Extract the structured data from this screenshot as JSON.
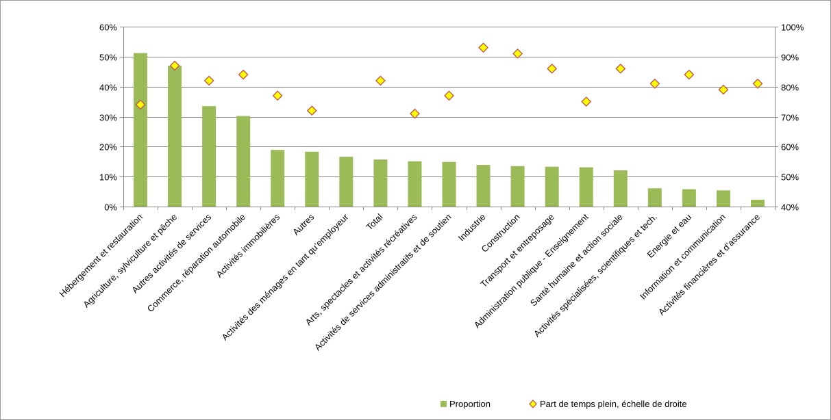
{
  "chart_data": {
    "type": "bar",
    "categories": [
      "Hébergement et restauration",
      "Agriculture, sylviculture et pêche",
      "Autres activités de services",
      "Commerce, réparation automobile",
      "Activités immobilières",
      "Autres",
      "Activités des ménages en tant qu’employeur",
      "Total",
      "Arts, spectacles et activités récréatives",
      "Activités de services administratifs et de soutien",
      "Industrie",
      "Construction",
      "Transport et entreposage",
      "Administration publique - Enseignement",
      "Santé humaine et action sociale",
      "Activités spécialisées, scientifiques et tech.",
      "Energie et eau",
      "Information et communication",
      "Activités financières et d’assurance"
    ],
    "series": [
      {
        "name": "Proportion",
        "axis": "left",
        "type": "bar",
        "color": "#9bbb59",
        "values": [
          51.2,
          47.0,
          33.5,
          30.2,
          18.9,
          18.3,
          16.6,
          15.7,
          15.1,
          14.9,
          13.9,
          13.5,
          13.3,
          13.1,
          12.1,
          6.1,
          5.8,
          5.4,
          2.3
        ]
      },
      {
        "name": "Part de temps plein, échelle de droite",
        "axis": "right",
        "type": "scatter",
        "color": "#ffff00",
        "edge_color": "#c0504d",
        "values": [
          74,
          87,
          82,
          84,
          77,
          72,
          null,
          82,
          71,
          77,
          93,
          91,
          86,
          75,
          86,
          81,
          84,
          79,
          81
        ]
      }
    ],
    "y_left": {
      "min": 0,
      "max": 60,
      "step": 10,
      "ticks": [
        "0%",
        "10%",
        "20%",
        "30%",
        "40%",
        "50%",
        "60%"
      ]
    },
    "y_right": {
      "min": 40,
      "max": 100,
      "step": 10,
      "ticks": [
        "40%",
        "50%",
        "60%",
        "70%",
        "80%",
        "90%",
        "100%"
      ]
    },
    "grid": true,
    "legend": "bottom"
  }
}
